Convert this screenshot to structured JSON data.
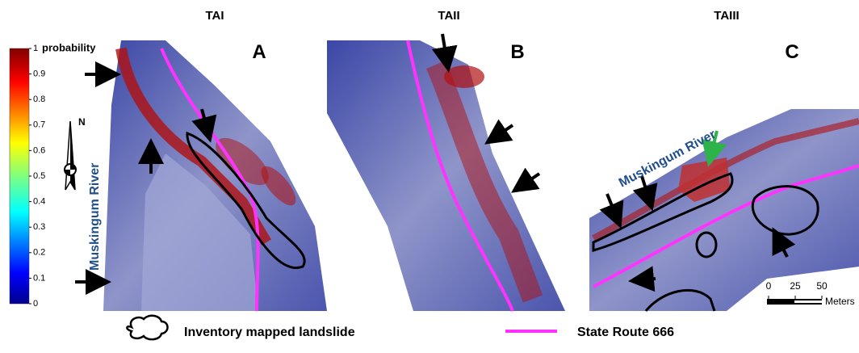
{
  "panels": [
    {
      "title": "TAI",
      "letter": "A"
    },
    {
      "title": "TAII",
      "letter": "B"
    },
    {
      "title": "TAIII",
      "letter": "C"
    }
  ],
  "colorbar": {
    "label": "probability",
    "ticks": [
      0,
      0.1,
      0.2,
      0.3,
      0.4,
      0.5,
      0.6,
      0.7,
      0.8,
      0.9,
      1
    ]
  },
  "compass": "N",
  "river_labels": [
    "Muskingum River",
    "Muskingum River"
  ],
  "scale_bar": {
    "ticks": [
      0,
      25,
      50
    ],
    "unit": "Meters"
  },
  "legend": [
    "Inventory mapped landslide",
    "State Route 666"
  ]
}
